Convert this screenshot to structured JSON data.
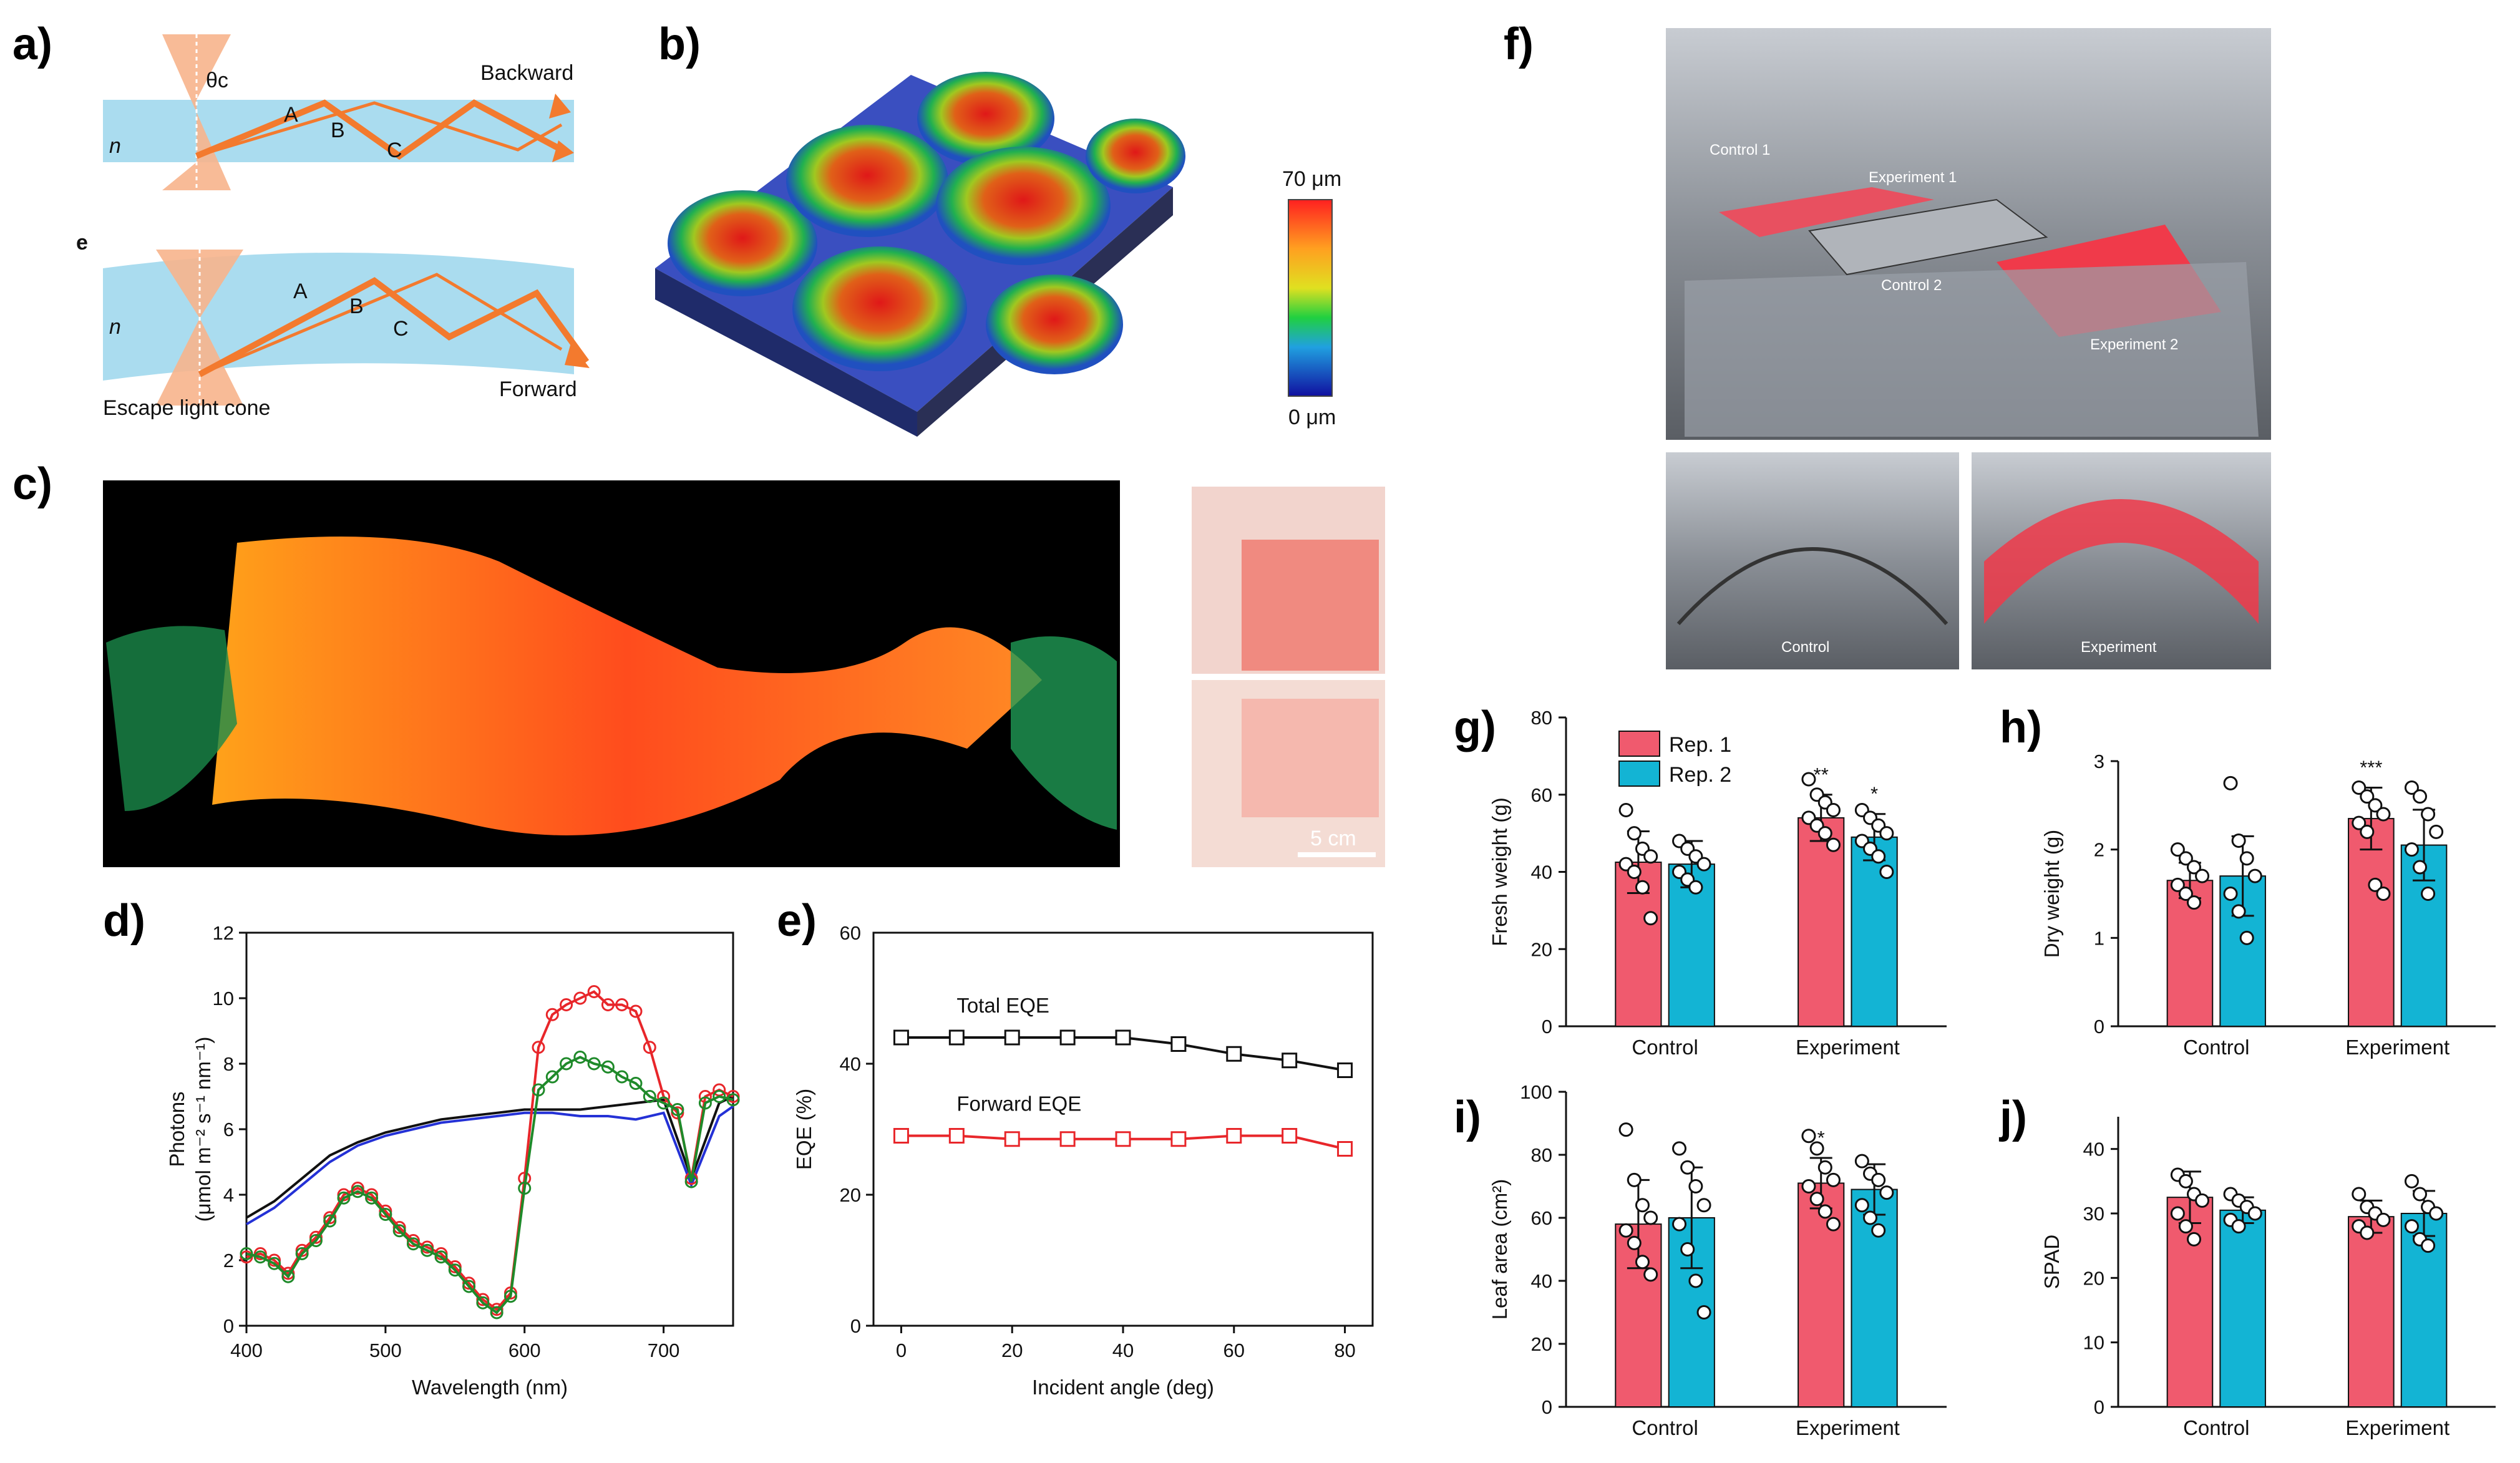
{
  "panels": {
    "a": {
      "label": "a)",
      "top_label": "Backward",
      "bottom_label": "Forward",
      "ray_labels": [
        "A",
        "B",
        "C"
      ],
      "n_label": "n",
      "theta_label": "θc",
      "e_label": "e",
      "cone_label": "Escape light cone"
    },
    "b": {
      "label": "b)",
      "colorbar_top": "70 μm",
      "colorbar_bottom": "0 μm"
    },
    "c": {
      "label": "c)",
      "scale_bar": "5 cm"
    },
    "d": {
      "label": "d)"
    },
    "e": {
      "label": "e)"
    },
    "f": {
      "label": "f)",
      "photo_labels": [
        "Control 1",
        "Experiment 1",
        "Control 2",
        "Experiment 2"
      ],
      "sub_labels": [
        "Control",
        "Experiment"
      ]
    },
    "g": {
      "label": "g)"
    },
    "h": {
      "label": "h)"
    },
    "i": {
      "label": "i)"
    },
    "j": {
      "label": "j)"
    }
  },
  "legend": {
    "rep1": "Rep. 1",
    "rep2": "Rep. 2"
  },
  "colors": {
    "rep1": "#f05a6e",
    "rep2": "#13b4d4",
    "red": "#e8262a",
    "green": "#1f8a2a",
    "blue": "#2431d6",
    "black": "#111111"
  },
  "chart_data": [
    {
      "id": "d",
      "type": "line",
      "xlabel": "Wavelength (nm)",
      "ylabel": "Photons",
      "ylabel2": "(μmol m⁻² s⁻¹ nm⁻¹)",
      "xlim": [
        400,
        750
      ],
      "ylim": [
        0,
        12
      ],
      "xticks": [
        400,
        500,
        600,
        700
      ],
      "yticks": [
        0,
        2,
        4,
        6,
        8,
        10,
        12
      ],
      "series": [
        {
          "name": "black",
          "color": "#111111",
          "x": [
            400,
            420,
            440,
            460,
            480,
            500,
            520,
            540,
            560,
            580,
            600,
            620,
            640,
            660,
            680,
            700,
            720,
            740,
            750
          ],
          "y": [
            3.3,
            3.8,
            4.5,
            5.2,
            5.6,
            5.9,
            6.1,
            6.3,
            6.4,
            6.5,
            6.6,
            6.6,
            6.6,
            6.7,
            6.8,
            6.9,
            4.5,
            6.8,
            7.0
          ]
        },
        {
          "name": "blue",
          "color": "#2431d6",
          "x": [
            400,
            420,
            440,
            460,
            480,
            500,
            520,
            540,
            560,
            580,
            600,
            620,
            640,
            660,
            680,
            700,
            720,
            740,
            750
          ],
          "y": [
            3.1,
            3.6,
            4.3,
            5.0,
            5.5,
            5.8,
            6.0,
            6.2,
            6.3,
            6.4,
            6.5,
            6.5,
            6.4,
            6.4,
            6.3,
            6.5,
            4.3,
            6.4,
            6.7
          ]
        },
        {
          "name": "red",
          "color": "#e8262a",
          "x": [
            400,
            410,
            420,
            430,
            440,
            450,
            460,
            470,
            480,
            490,
            500,
            510,
            520,
            530,
            540,
            550,
            560,
            570,
            580,
            590,
            600,
            610,
            620,
            630,
            640,
            650,
            660,
            670,
            680,
            690,
            700,
            710,
            720,
            730,
            740,
            750
          ],
          "y": [
            2.1,
            2.2,
            2.0,
            1.6,
            2.3,
            2.7,
            3.3,
            4.0,
            4.2,
            4.0,
            3.5,
            3.0,
            2.6,
            2.4,
            2.2,
            1.8,
            1.3,
            0.8,
            0.5,
            1.0,
            4.5,
            8.5,
            9.5,
            9.8,
            10.0,
            10.2,
            9.8,
            9.8,
            9.6,
            8.5,
            7.0,
            6.5,
            4.5,
            7.0,
            7.2,
            7.0
          ]
        },
        {
          "name": "green",
          "color": "#1f8a2a",
          "x": [
            400,
            410,
            420,
            430,
            440,
            450,
            460,
            470,
            480,
            490,
            500,
            510,
            520,
            530,
            540,
            550,
            560,
            570,
            580,
            590,
            600,
            610,
            620,
            630,
            640,
            650,
            660,
            670,
            680,
            690,
            700,
            710,
            720,
            730,
            740,
            750
          ],
          "y": [
            2.2,
            2.1,
            1.9,
            1.5,
            2.2,
            2.6,
            3.2,
            3.9,
            4.1,
            3.9,
            3.4,
            2.9,
            2.5,
            2.3,
            2.1,
            1.7,
            1.2,
            0.7,
            0.4,
            0.9,
            4.2,
            7.2,
            7.6,
            8.0,
            8.2,
            8.0,
            7.9,
            7.6,
            7.4,
            7.0,
            6.8,
            6.6,
            4.4,
            6.8,
            7.0,
            6.9
          ]
        }
      ]
    },
    {
      "id": "e",
      "type": "line",
      "xlabel": "Incident angle (deg)",
      "ylabel": "EQE (%)",
      "xlim": [
        -5,
        85
      ],
      "ylim": [
        0,
        60
      ],
      "xticks": [
        0,
        20,
        40,
        60,
        80
      ],
      "yticks": [
        0,
        20,
        40
      ],
      "ytick_top": "60",
      "series": [
        {
          "name": "Total EQE",
          "color": "#111111",
          "x": [
            0,
            10,
            20,
            30,
            40,
            50,
            60,
            70,
            80
          ],
          "y": [
            44,
            44,
            44,
            44,
            44,
            43,
            41.5,
            40.5,
            39
          ]
        },
        {
          "name": "Forward EQE",
          "color": "#e8262a",
          "x": [
            0,
            10,
            20,
            30,
            40,
            50,
            60,
            70,
            80
          ],
          "y": [
            29,
            29,
            28.5,
            28.5,
            28.5,
            28.5,
            29,
            29,
            27
          ]
        }
      ]
    },
    {
      "id": "g",
      "type": "bar",
      "ylabel": "Fresh weight (g)",
      "ylim": [
        0,
        80
      ],
      "yticks": [
        0,
        20,
        40,
        60,
        80
      ],
      "categories": [
        "Control",
        "Experiment"
      ],
      "series": [
        {
          "name": "Rep. 1",
          "values": [
            42.5,
            54
          ],
          "err": [
            8,
            6
          ],
          "points": [
            [
              56,
              50,
              46,
              44,
              42,
              40,
              36,
              28
            ],
            [
              64,
              60,
              58,
              56,
              54,
              52,
              50,
              47
            ]
          ]
        },
        {
          "name": "Rep. 2",
          "values": [
            42,
            49
          ],
          "err": [
            6,
            6
          ],
          "points": [
            [
              48,
              46,
              44,
              42,
              40,
              38,
              36
            ],
            [
              56,
              54,
              52,
              50,
              48,
              46,
              44,
              40
            ]
          ]
        }
      ],
      "significance": [
        "",
        "",
        "**",
        "*"
      ]
    },
    {
      "id": "h",
      "type": "bar",
      "ylabel": "Dry weight (g)",
      "ylim": [
        0,
        3
      ],
      "yticks": [
        0,
        1,
        2,
        3
      ],
      "categories": [
        "Control",
        "Experiment"
      ],
      "series": [
        {
          "name": "Rep. 1",
          "values": [
            1.65,
            2.35
          ],
          "err": [
            0.2,
            0.35
          ],
          "points": [
            [
              2.0,
              1.9,
              1.8,
              1.7,
              1.6,
              1.5,
              1.4
            ],
            [
              2.7,
              2.6,
              2.5,
              2.4,
              2.3,
              2.2,
              1.6,
              1.5
            ]
          ]
        },
        {
          "name": "Rep. 2",
          "values": [
            1.7,
            2.05
          ],
          "err": [
            0.45,
            0.4
          ],
          "points": [
            [
              2.75,
              2.1,
              1.9,
              1.7,
              1.5,
              1.3,
              1.0
            ],
            [
              2.7,
              2.6,
              2.4,
              2.2,
              2.0,
              1.8,
              1.5
            ]
          ]
        }
      ],
      "significance": [
        "",
        "",
        "***",
        ""
      ]
    },
    {
      "id": "i",
      "type": "bar",
      "ylabel": "Leaf area (cm²)",
      "ylim": [
        0,
        100
      ],
      "yticks": [
        0,
        20,
        40,
        60,
        80,
        100
      ],
      "categories": [
        "Control",
        "Experiment"
      ],
      "series": [
        {
          "name": "Rep. 1",
          "values": [
            58,
            71
          ],
          "err": [
            14,
            8
          ],
          "points": [
            [
              88,
              72,
              64,
              60,
              56,
              52,
              46,
              42
            ],
            [
              86,
              82,
              76,
              72,
              70,
              66,
              62,
              58
            ]
          ]
        },
        {
          "name": "Rep. 2",
          "values": [
            60,
            69
          ],
          "err": [
            16,
            8
          ],
          "points": [
            [
              82,
              76,
              70,
              64,
              58,
              50,
              40,
              30
            ],
            [
              78,
              74,
              72,
              68,
              64,
              60,
              56
            ]
          ]
        }
      ],
      "significance": [
        "",
        "",
        "*",
        ""
      ]
    },
    {
      "id": "j",
      "type": "bar",
      "ylabel": "SPAD",
      "ylim": [
        0,
        45
      ],
      "yticks": [
        0,
        10,
        20,
        30,
        40
      ],
      "categories": [
        "Control",
        "Experiment"
      ],
      "series": [
        {
          "name": "Rep. 1",
          "values": [
            32.5,
            29.5
          ],
          "err": [
            4,
            2.5
          ],
          "points": [
            [
              36,
              35,
              33,
              32,
              30,
              28,
              26
            ],
            [
              33,
              31,
              30,
              29,
              28,
              27
            ]
          ]
        },
        {
          "name": "Rep. 2",
          "values": [
            30.5,
            30
          ],
          "err": [
            2,
            3.5
          ],
          "points": [
            [
              33,
              32,
              31,
              30,
              29,
              28
            ],
            [
              35,
              33,
              31,
              30,
              28,
              26,
              25
            ]
          ]
        }
      ],
      "significance": [
        "",
        "",
        "",
        ""
      ]
    }
  ]
}
